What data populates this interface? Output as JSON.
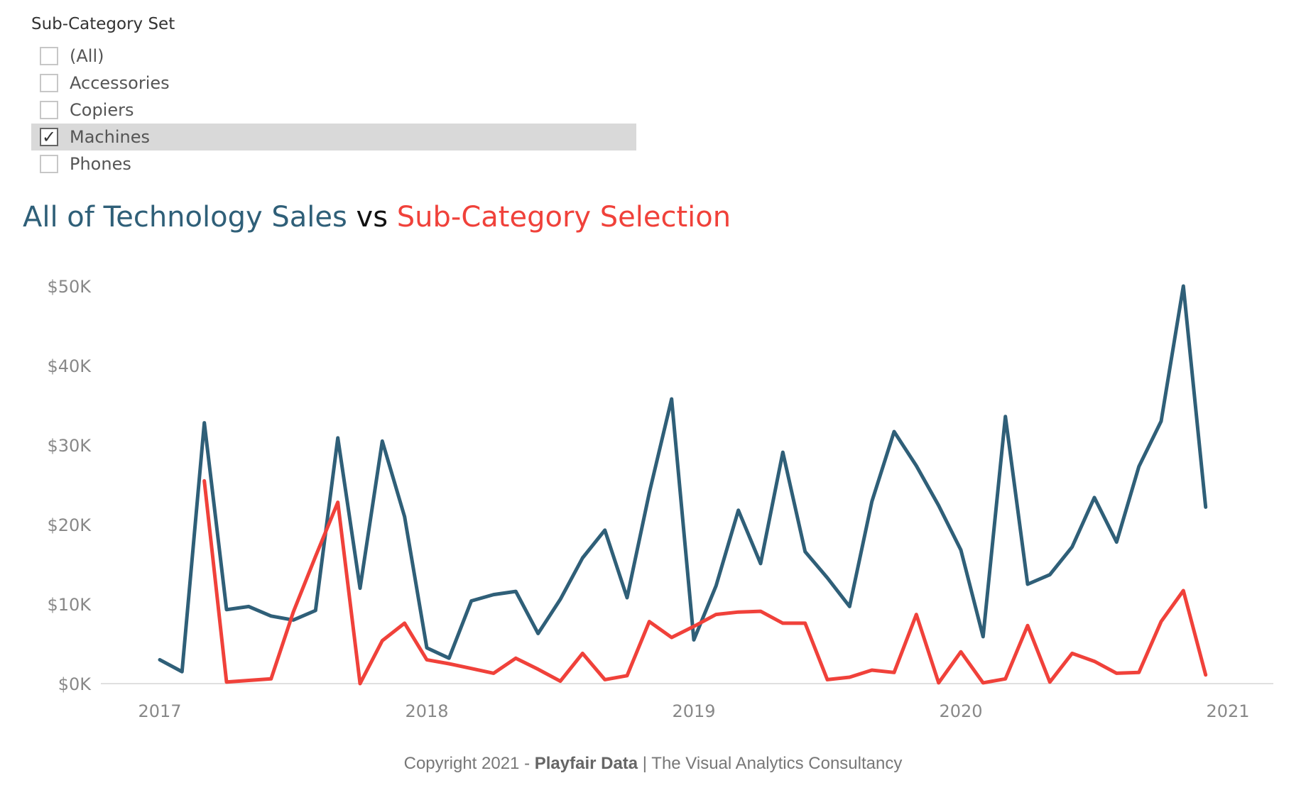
{
  "filter": {
    "title": "Sub-Category Set",
    "options": [
      {
        "label": "(All)",
        "checked": false
      },
      {
        "label": "Accessories",
        "checked": false
      },
      {
        "label": "Copiers",
        "checked": false
      },
      {
        "label": "Machines",
        "checked": true
      },
      {
        "label": "Phones",
        "checked": false
      }
    ],
    "check_glyph": "✓"
  },
  "title_parts": {
    "a": "All of Technology Sales",
    "b": " vs ",
    "c": "Sub-Category Selection"
  },
  "colors": {
    "technology": "#2f5f78",
    "selection": "#f0413a",
    "axis": "#e0e0e0",
    "tick_text": "#888888"
  },
  "footer": {
    "prefix": "Copyright 2021 - ",
    "brand": "Playfair Data",
    "suffix": " | The Visual Analytics Consultancy"
  },
  "chart_data": {
    "type": "line",
    "x_labels": [
      "2017",
      "2018",
      "2019",
      "2020",
      "2021"
    ],
    "y_ticks": [
      "$0K",
      "$10K",
      "$20K",
      "$30K",
      "$40K",
      "$50K"
    ],
    "ylim": [
      0,
      50000
    ],
    "x": [
      "2017-01",
      "2017-02",
      "2017-03",
      "2017-04",
      "2017-05",
      "2017-06",
      "2017-07",
      "2017-08",
      "2017-09",
      "2017-10",
      "2017-11",
      "2017-12",
      "2018-01",
      "2018-02",
      "2018-03",
      "2018-04",
      "2018-05",
      "2018-06",
      "2018-07",
      "2018-08",
      "2018-09",
      "2018-10",
      "2018-11",
      "2018-12",
      "2019-01",
      "2019-02",
      "2019-03",
      "2019-04",
      "2019-05",
      "2019-06",
      "2019-07",
      "2019-08",
      "2019-09",
      "2019-10",
      "2019-11",
      "2019-12",
      "2020-01",
      "2020-02",
      "2020-03",
      "2020-04",
      "2020-05",
      "2020-06",
      "2020-07",
      "2020-08",
      "2020-09",
      "2020-10",
      "2020-11",
      "2020-12"
    ],
    "series": [
      {
        "color": "#2f5f78",
        "values": [
          3000,
          1500,
          32800,
          9300,
          9700,
          8500,
          8000,
          9200,
          30900,
          12000,
          30500,
          21000,
          4500,
          3200,
          10400,
          11200,
          11600,
          6300,
          10600,
          15800,
          19300,
          10800,
          24000,
          35800,
          5500,
          12300,
          21800,
          15100,
          29100,
          16600,
          13300,
          9700,
          22900,
          31700,
          27400,
          22400,
          16800,
          5900,
          33600,
          12500,
          13700,
          17200,
          23400,
          17800,
          27300,
          33000,
          50000,
          22200
        ]
      },
      {
        "color": "#f0413a",
        "values": [
          null,
          null,
          25500,
          200,
          400,
          600,
          9000,
          16000,
          22800,
          0,
          5400,
          7600,
          3000,
          2500,
          1900,
          1300,
          3200,
          1800,
          300,
          3800,
          500,
          1000,
          7800,
          5800,
          7200,
          8700,
          9000,
          9100,
          7600,
          7600,
          500,
          800,
          1700,
          1400,
          8700,
          100,
          4000,
          100,
          600,
          7300,
          200,
          3800,
          2800,
          1300,
          1400,
          7800,
          11700,
          1100
        ]
      }
    ]
  }
}
